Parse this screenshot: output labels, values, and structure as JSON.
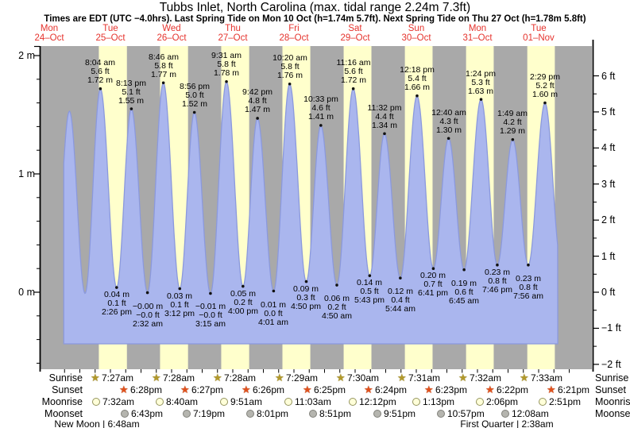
{
  "title": "Tubbs Inlet, North Carolina (max. tidal range 2.24m 7.3ft)",
  "subtitle": "Times are EDT (UTC −4.0hrs). Last Spring Tide on Mon 10 Oct (h=1.74m 5.7ft). Next Spring Tide on Thu 27 Oct (h=1.78m 5.8ft)",
  "days": [
    {
      "name": "Mon",
      "date": "24–Oct"
    },
    {
      "name": "Tue",
      "date": "25–Oct"
    },
    {
      "name": "Wed",
      "date": "26–Oct"
    },
    {
      "name": "Thu",
      "date": "27–Oct"
    },
    {
      "name": "Fri",
      "date": "28–Oct"
    },
    {
      "name": "Sat",
      "date": "29–Oct"
    },
    {
      "name": "Sun",
      "date": "30–Oct"
    },
    {
      "name": "Mon",
      "date": "31–Oct"
    },
    {
      "name": "Tue",
      "date": "01–Nov"
    }
  ],
  "axes": {
    "left_labels": [
      {
        "v": 2,
        "text": "2 m"
      },
      {
        "v": 1,
        "text": "1 m"
      },
      {
        "v": 0,
        "text": "0 m"
      }
    ],
    "right_labels": [
      {
        "ft": 6,
        "text": "6 ft"
      },
      {
        "ft": 5,
        "text": "5 ft"
      },
      {
        "ft": 4,
        "text": "4 ft"
      },
      {
        "ft": 3,
        "text": "3 ft"
      },
      {
        "ft": 2,
        "text": "2 ft"
      },
      {
        "ft": 1,
        "text": "1 ft"
      },
      {
        "ft": 0,
        "text": "0 ft"
      },
      {
        "ft": -1,
        "text": "−1 ft"
      },
      {
        "ft": -2,
        "text": "−2 ft"
      }
    ]
  },
  "chart_data": {
    "type": "area",
    "title": "Tide height curve for Tubbs Inlet, North Carolina",
    "ylabel_left": "meters",
    "ylabel_right": "feet",
    "ylim_m": [
      -0.65,
      2.07
    ],
    "x_range_days": [
      "Mon 24 Oct",
      "Tue 01 Nov"
    ],
    "grid": false,
    "legend": "none",
    "tide_events": [
      {
        "t": 13.83,
        "v": 0.03,
        "type": "low",
        "labeled": false
      },
      {
        "t": 19.92,
        "v": 1.53,
        "type": "high",
        "labeled": false
      },
      {
        "t": 26.03,
        "v": -0.01,
        "type": "low",
        "labeled": false
      },
      {
        "t": 32.07,
        "v": 1.72,
        "type": "high",
        "labeled": true,
        "time": "8:04 am",
        "ft": "5.6 ft",
        "m": "1.72 m"
      },
      {
        "t": 38.43,
        "v": 0.04,
        "type": "low",
        "labeled": true,
        "time": "2:26 pm",
        "ft": "0.1 ft",
        "m": "0.04 m"
      },
      {
        "t": 44.22,
        "v": 1.55,
        "type": "high",
        "labeled": true,
        "time": "8:13 pm",
        "ft": "5.1 ft",
        "m": "1.55 m"
      },
      {
        "t": 50.53,
        "v": -0.004,
        "type": "low",
        "labeled": true,
        "time": "2:32 am",
        "ft": "−0.0 ft",
        "m": "−0.00 m"
      },
      {
        "t": 56.77,
        "v": 1.77,
        "type": "high",
        "labeled": true,
        "time": "8:46 am",
        "ft": "5.8 ft",
        "m": "1.77 m"
      },
      {
        "t": 63.2,
        "v": 0.03,
        "type": "low",
        "labeled": true,
        "time": "3:12 pm",
        "ft": "0.1 ft",
        "m": "0.03 m"
      },
      {
        "t": 68.93,
        "v": 1.52,
        "type": "high",
        "labeled": true,
        "time": "8:56 pm",
        "ft": "5.0 ft",
        "m": "1.52 m"
      },
      {
        "t": 75.25,
        "v": -0.01,
        "type": "low",
        "labeled": true,
        "time": "3:15 am",
        "ft": "−0.0 ft",
        "m": "−0.01 m"
      },
      {
        "t": 81.52,
        "v": 1.78,
        "type": "high",
        "labeled": true,
        "time": "9:31 am",
        "ft": "5.8 ft",
        "m": "1.78 m"
      },
      {
        "t": 88.0,
        "v": 0.05,
        "type": "low",
        "labeled": true,
        "time": "4:00 pm",
        "ft": "0.2 ft",
        "m": "0.05 m"
      },
      {
        "t": 93.7,
        "v": 1.47,
        "type": "high",
        "labeled": true,
        "time": "9:42 pm",
        "ft": "4.8 ft",
        "m": "1.47 m"
      },
      {
        "t": 100.02,
        "v": 0.01,
        "type": "low",
        "labeled": true,
        "time": "4:01 am",
        "ft": "0.0 ft",
        "m": "0.01 m"
      },
      {
        "t": 106.33,
        "v": 1.76,
        "type": "high",
        "labeled": true,
        "time": "10:20 am",
        "ft": "5.8 ft",
        "m": "1.76 m"
      },
      {
        "t": 112.83,
        "v": 0.09,
        "type": "low",
        "labeled": true,
        "time": "4:50 pm",
        "ft": "0.3 ft",
        "m": "0.09 m"
      },
      {
        "t": 118.55,
        "v": 1.41,
        "type": "high",
        "labeled": true,
        "time": "10:33 pm",
        "ft": "4.6 ft",
        "m": "1.41 m"
      },
      {
        "t": 124.83,
        "v": 0.06,
        "type": "low",
        "labeled": true,
        "time": "4:50 am",
        "ft": "0.2 ft",
        "m": "0.06 m"
      },
      {
        "t": 131.27,
        "v": 1.72,
        "type": "high",
        "labeled": true,
        "time": "11:16 am",
        "ft": "5.6 ft",
        "m": "1.72 m"
      },
      {
        "t": 137.72,
        "v": 0.14,
        "type": "low",
        "labeled": true,
        "time": "5:43 pm",
        "ft": "0.5 ft",
        "m": "0.14 m"
      },
      {
        "t": 143.53,
        "v": 1.34,
        "type": "high",
        "labeled": true,
        "time": "11:32 pm",
        "ft": "4.4 ft",
        "m": "1.34 m"
      },
      {
        "t": 149.73,
        "v": 0.12,
        "type": "low",
        "labeled": true,
        "time": "5:44 am",
        "ft": "0.4 ft",
        "m": "0.12 m"
      },
      {
        "t": 156.3,
        "v": 1.66,
        "type": "high",
        "labeled": true,
        "time": "12:18 pm",
        "ft": "5.4 ft",
        "m": "1.66 m"
      },
      {
        "t": 162.68,
        "v": 0.2,
        "type": "low",
        "labeled": true,
        "time": "6:41 pm",
        "ft": "0.7 ft",
        "m": "0.20 m"
      },
      {
        "t": 168.67,
        "v": 1.3,
        "type": "high",
        "labeled": true,
        "time": "12:40 am",
        "ft": "4.3 ft",
        "m": "1.30 m"
      },
      {
        "t": 174.75,
        "v": 0.19,
        "type": "low",
        "labeled": true,
        "time": "6:45 am",
        "ft": "0.6 ft",
        "m": "0.19 m"
      },
      {
        "t": 181.4,
        "v": 1.63,
        "type": "high",
        "labeled": true,
        "time": "1:24 pm",
        "ft": "5.3 ft",
        "m": "1.63 m"
      },
      {
        "t": 187.77,
        "v": 0.23,
        "type": "low",
        "labeled": true,
        "time": "7:46 pm",
        "ft": "0.8 ft",
        "m": "0.23 m"
      },
      {
        "t": 193.82,
        "v": 1.29,
        "type": "high",
        "labeled": true,
        "time": "1:49 am",
        "ft": "4.2 ft",
        "m": "1.29 m"
      },
      {
        "t": 199.93,
        "v": 0.23,
        "type": "low",
        "labeled": true,
        "time": "7:56 am",
        "ft": "0.8 ft",
        "m": "0.23 m"
      },
      {
        "t": 206.48,
        "v": 1.6,
        "type": "high",
        "labeled": true,
        "time": "2:29 pm",
        "ft": "5.2 ft",
        "m": "1.60 m"
      },
      {
        "t": 212.75,
        "v": 0.26,
        "type": "low",
        "labeled": false
      }
    ]
  },
  "sun_moon": {
    "row_labels": [
      "Sunrise",
      "Sunset",
      "Moonrise",
      "Moonset"
    ],
    "sunrise": [
      {
        "t": 31.45,
        "time": "7:27am"
      },
      {
        "t": 55.467,
        "time": "7:28am"
      },
      {
        "t": 79.467,
        "time": "7:28am"
      },
      {
        "t": 103.483,
        "time": "7:29am"
      },
      {
        "t": 127.5,
        "time": "7:30am"
      },
      {
        "t": 151.517,
        "time": "7:31am"
      },
      {
        "t": 175.533,
        "time": "7:32am"
      },
      {
        "t": 199.55,
        "time": "7:33am"
      }
    ],
    "sunset": [
      {
        "t": 42.467,
        "time": "6:28pm"
      },
      {
        "t": 66.45,
        "time": "6:27pm"
      },
      {
        "t": 90.433,
        "time": "6:26pm"
      },
      {
        "t": 114.417,
        "time": "6:25pm"
      },
      {
        "t": 138.4,
        "time": "6:24pm"
      },
      {
        "t": 162.383,
        "time": "6:23pm"
      },
      {
        "t": 186.367,
        "time": "6:22pm"
      },
      {
        "t": 210.35,
        "time": "6:21pm"
      }
    ],
    "moonrise": [
      {
        "t": 31.533,
        "time": "7:32am"
      },
      {
        "t": 56.667,
        "time": "8:40am"
      },
      {
        "t": 81.85,
        "time": "9:51am"
      },
      {
        "t": 107.05,
        "time": "11:03am"
      },
      {
        "t": 132.2,
        "time": "12:12pm"
      },
      {
        "t": 157.217,
        "time": "1:13pm"
      },
      {
        "t": 182.1,
        "time": "2:06pm"
      },
      {
        "t": 206.85,
        "time": "2:51pm"
      }
    ],
    "moonset": [
      {
        "t": 42.717,
        "time": "6:43pm"
      },
      {
        "t": 67.317,
        "time": "7:19pm"
      },
      {
        "t": 92.017,
        "time": "8:01pm"
      },
      {
        "t": 116.85,
        "time": "8:51pm"
      },
      {
        "t": 141.85,
        "time": "9:51pm"
      },
      {
        "t": 166.95,
        "time": "10:57pm"
      },
      {
        "t": 192.133,
        "time": "12:08am"
      }
    ],
    "phases": [
      {
        "t": 30.8,
        "text": "New Moon | 6:48am"
      },
      {
        "t": 191.5,
        "text": "First Quarter | 2:38am"
      }
    ]
  },
  "colors": {
    "day_band": "#ffffcc",
    "night_band": "#a9a9a9",
    "water_fill": "#aab6ee",
    "water_edge": "#8b99dd",
    "date_red": "#e5332d",
    "sunrise_star": "#b2992b",
    "sunrise_star_edge": "#6e5e10",
    "sunset_star": "#e0511d",
    "sunset_star_edge": "#962d00",
    "moonrise_fill": "#ffffd9",
    "moonrise_edge": "#95955f",
    "moonset_fill": "#b5b5af",
    "moonset_edge": "#80807a",
    "dot": "#111111",
    "axis": "#000000"
  }
}
